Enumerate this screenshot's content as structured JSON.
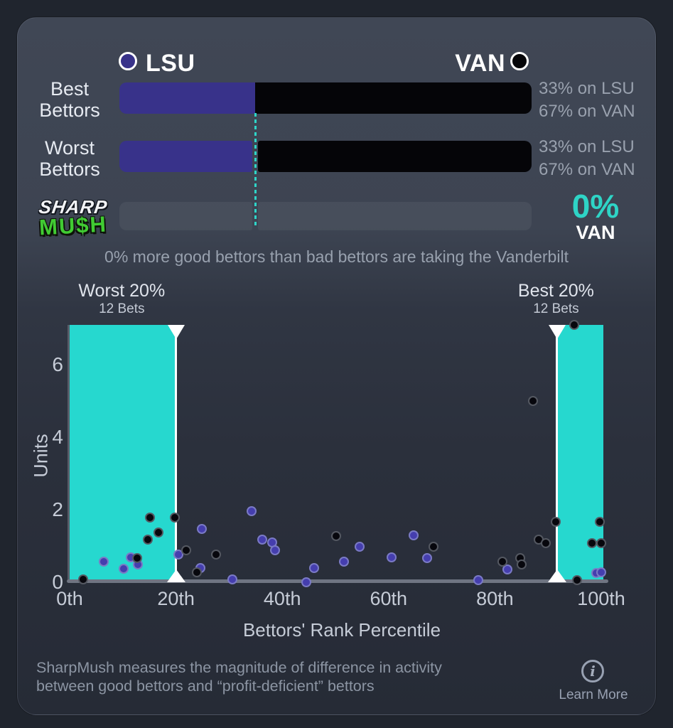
{
  "header": {
    "teams": [
      {
        "name": "LSU",
        "color": "#38328a"
      },
      {
        "name": "VAN",
        "color": "#050508"
      }
    ],
    "rows": [
      {
        "label_line1": "Best",
        "label_line2": "Bettors",
        "lsu_pct": 33,
        "van_pct": 67,
        "stat_lsu": "33% on LSU",
        "stat_van": "67% on VAN"
      },
      {
        "label_line1": "Worst",
        "label_line2": "Bettors",
        "lsu_pct": 33,
        "van_pct": 67,
        "stat_lsu": "33% on LSU",
        "stat_van": "67% on VAN"
      }
    ],
    "logo": {
      "line1": "SHARP",
      "line2": "MU$H"
    },
    "score": {
      "value": "0%",
      "team": "VAN",
      "accent_color": "#2ed4c6"
    },
    "caption": "0% more good bettors than bad bettors are taking the Vanderbilt"
  },
  "chart_data": {
    "type": "scatter",
    "xlabel": "Bettors' Rank Percentile",
    "ylabel": "Units",
    "xlim": [
      0,
      100
    ],
    "ylim": [
      0,
      7.1
    ],
    "x_ticks": [
      "0th",
      "20th",
      "40th",
      "60th",
      "80th",
      "100th"
    ],
    "x_tick_values": [
      0,
      20,
      40,
      60,
      80,
      100
    ],
    "y_ticks": [
      0,
      2,
      4,
      6
    ],
    "grid": false,
    "band_color": "#26d8cf",
    "bands": [
      {
        "label": "Worst 20%",
        "sub": "12 Bets",
        "from": 0,
        "to": 20,
        "label_at": 9.8
      },
      {
        "label": "Best 20%",
        "sub": "12 Bets",
        "from": 91.7,
        "to": 100.4,
        "label_at": 91.5
      }
    ],
    "boundaries": [
      20,
      91.7
    ],
    "series": [
      {
        "name": "LSU",
        "color": "#453eae",
        "points": [
          [
            6.4,
            0.57
          ],
          [
            10.2,
            0.37
          ],
          [
            11.5,
            0.69
          ],
          [
            12.8,
            0.49
          ],
          [
            20.4,
            0.76
          ],
          [
            24.6,
            0.39
          ],
          [
            24.8,
            1.47
          ],
          [
            30.6,
            0.08
          ],
          [
            34.2,
            1.96
          ],
          [
            36.2,
            1.18
          ],
          [
            38.1,
            1.1
          ],
          [
            38.7,
            0.88
          ],
          [
            44.5,
            0
          ],
          [
            46,
            0.39
          ],
          [
            51.6,
            0.57
          ],
          [
            54.5,
            0.98
          ],
          [
            60.5,
            0.69
          ],
          [
            64.7,
            1.29
          ],
          [
            67.3,
            0.67
          ],
          [
            76.9,
            0.06
          ],
          [
            82.3,
            0.35
          ],
          [
            99.1,
            0.25
          ],
          [
            100,
            0.27
          ]
        ]
      },
      {
        "name": "VAN",
        "color": "#07070d",
        "points": [
          [
            2.5,
            0.08
          ],
          [
            12.7,
            0.67
          ],
          [
            14.7,
            1.18
          ],
          [
            15.1,
            1.78
          ],
          [
            16.7,
            1.37
          ],
          [
            19.8,
            1.78
          ],
          [
            21.9,
            0.88
          ],
          [
            23.9,
            0.27
          ],
          [
            27.5,
            0.76
          ],
          [
            50.2,
            1.27
          ],
          [
            68.5,
            0.98
          ],
          [
            81.4,
            0.57
          ],
          [
            84.8,
            0.67
          ],
          [
            85,
            0.49
          ],
          [
            87.2,
            5
          ],
          [
            88.2,
            1.18
          ],
          [
            89.6,
            1.08
          ],
          [
            91.5,
            1.67
          ],
          [
            94.9,
            7.1
          ],
          [
            95.4,
            0.06
          ],
          [
            98.2,
            1.08
          ],
          [
            99.7,
            1.67
          ],
          [
            100,
            1.08
          ]
        ]
      }
    ]
  },
  "footer": {
    "line1": "SharpMush measures the magnitude of difference in activity",
    "line2": "between good bettors and “profit-deficient” bettors",
    "info_icon": "i",
    "learn_more": "Learn More"
  }
}
